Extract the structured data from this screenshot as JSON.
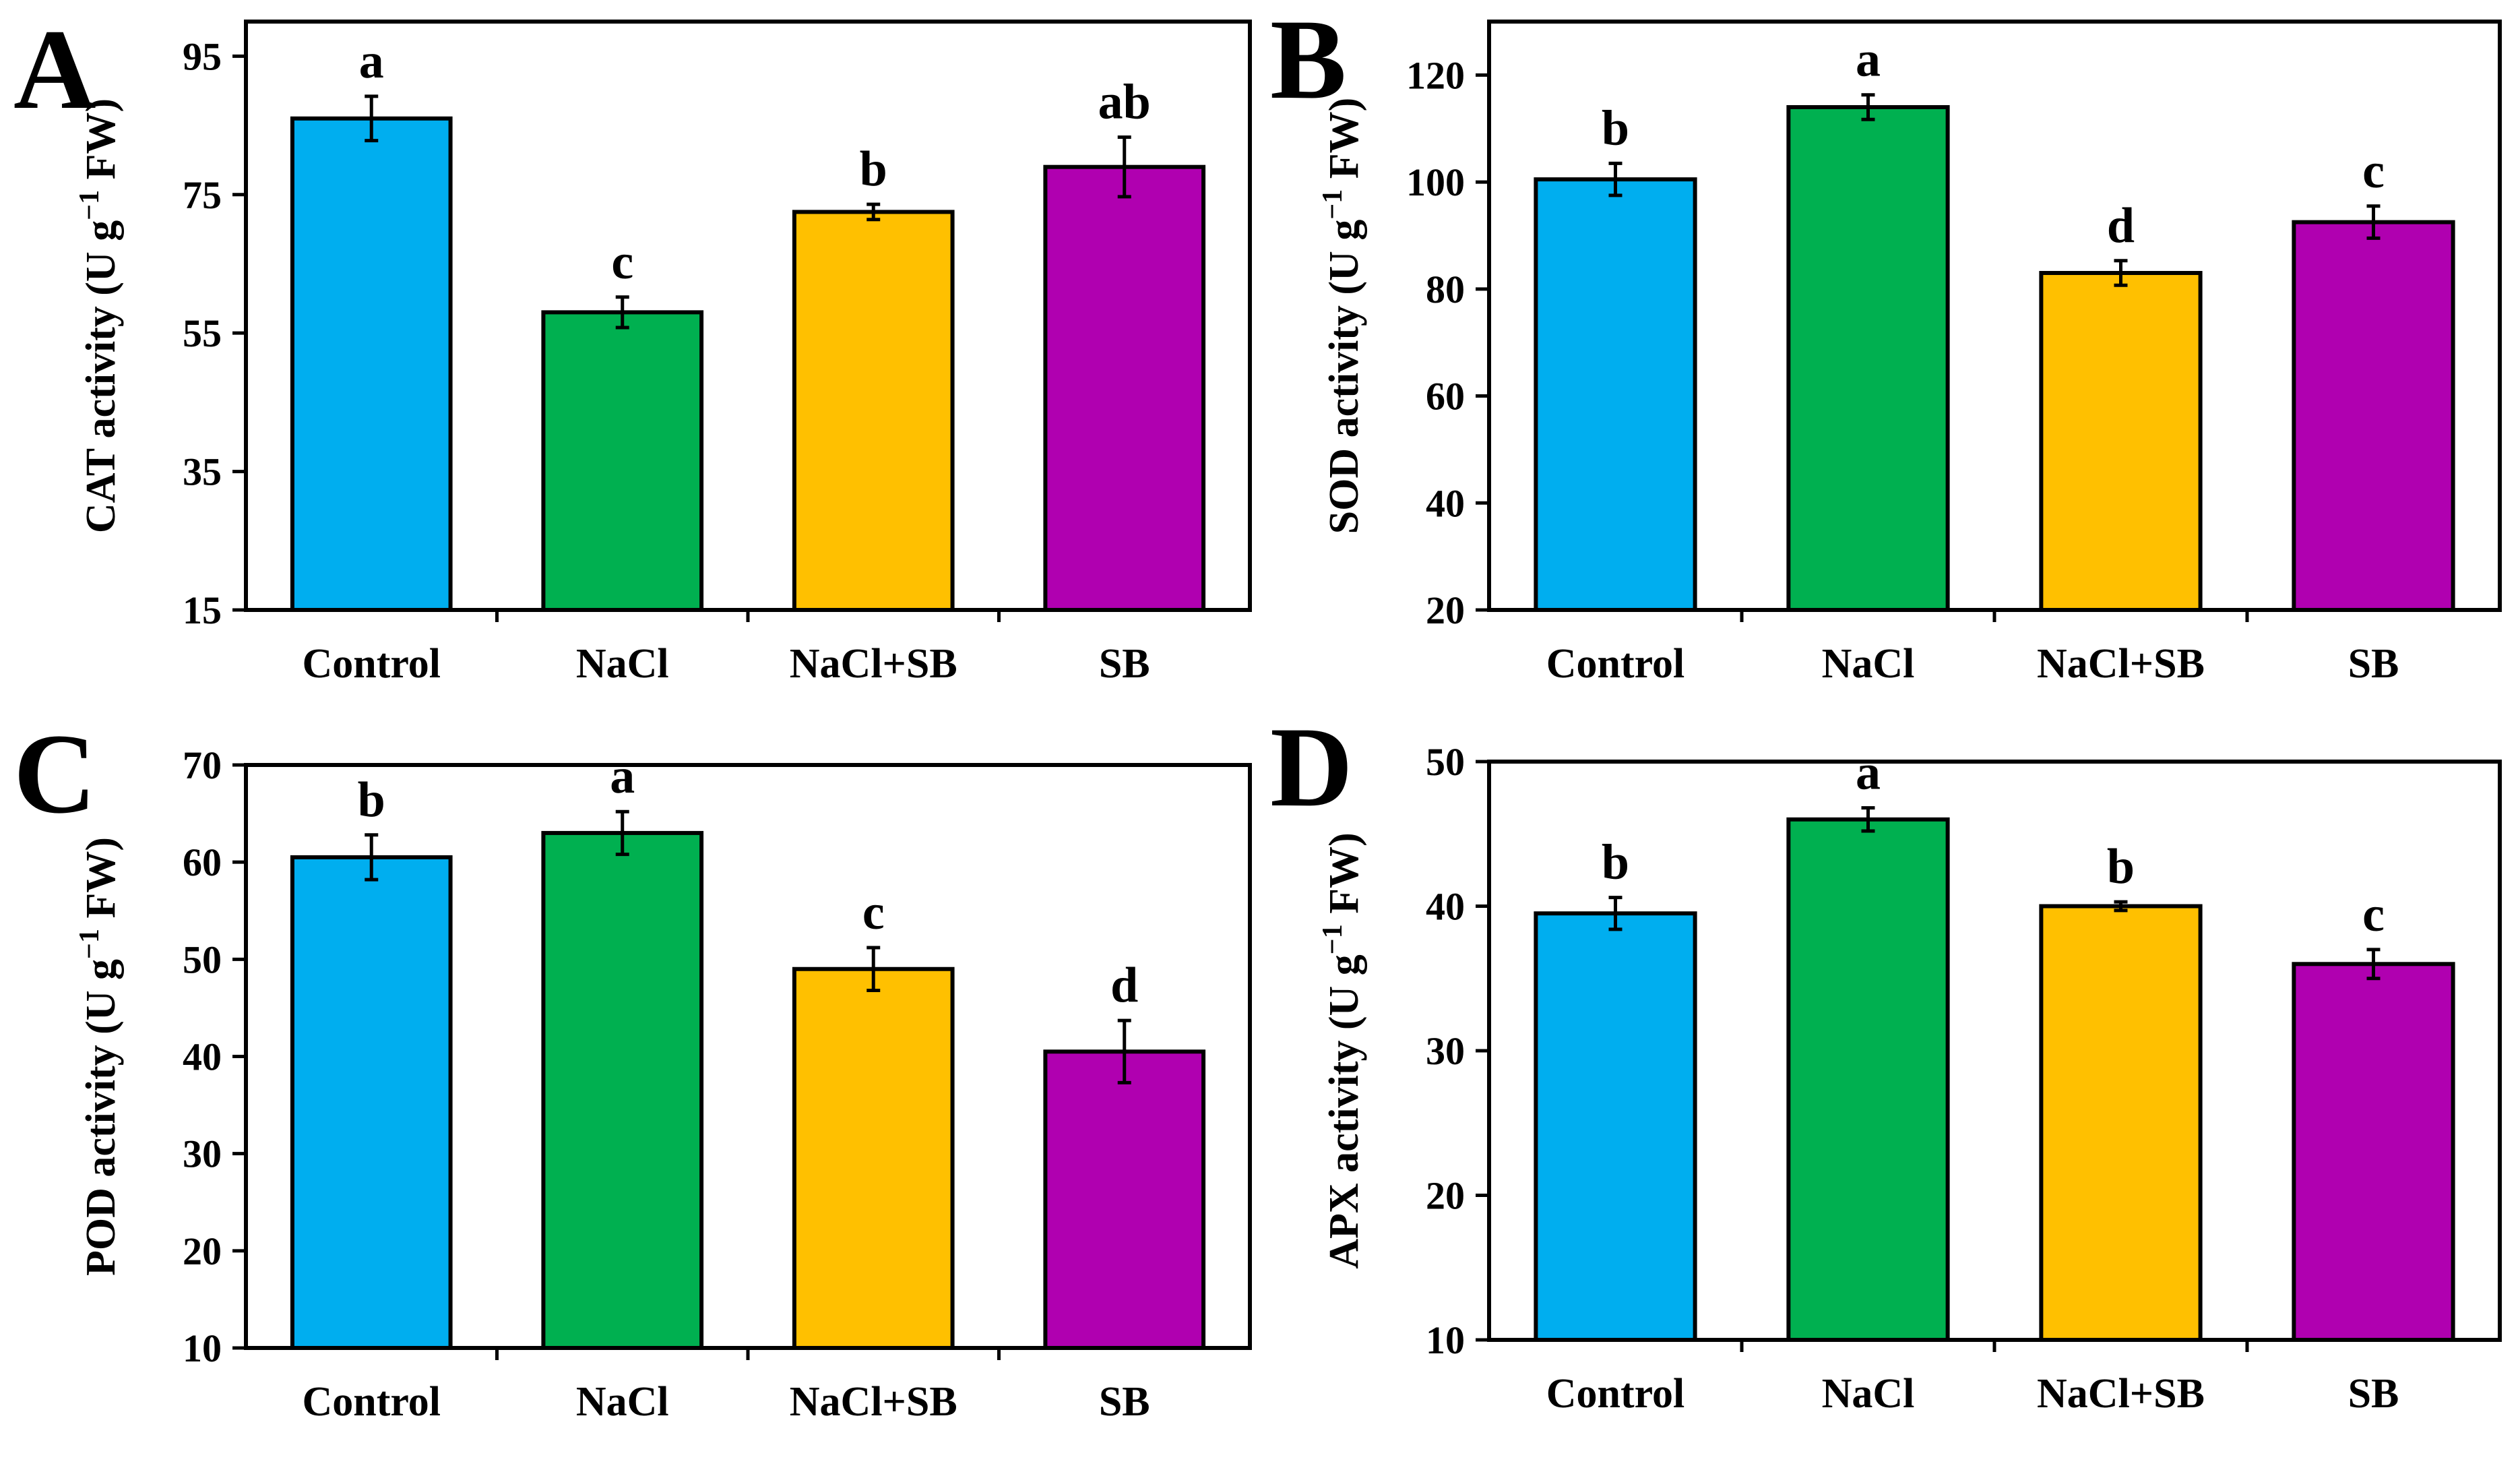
{
  "figure": {
    "colors": {
      "Control": "#00aeef",
      "NaCl": "#00b050",
      "NaCl+SB": "#ffc000",
      "SB": "#b000b0",
      "axis": "#000000"
    }
  },
  "chart_data": [
    {
      "panel": "A",
      "type": "bar",
      "categories": [
        "Control",
        "NaCl",
        "NaCl+SB",
        "SB"
      ],
      "values": [
        86,
        58,
        72.5,
        79
      ],
      "errors": [
        3.2,
        2.2,
        1.1,
        4.3
      ],
      "letters": [
        "a",
        "c",
        "b",
        "ab"
      ],
      "ylabel": "CAT activity (U g⁻¹ FW)",
      "ylabel_main": "CAT activity (U g",
      "ylabel_sup": "−1",
      "ylabel_end": " FW)",
      "ylim": [
        15,
        100
      ],
      "yticks": [
        15,
        35,
        55,
        75,
        95
      ]
    },
    {
      "panel": "B",
      "type": "bar",
      "categories": [
        "Control",
        "NaCl",
        "NaCl+SB",
        "SB"
      ],
      "values": [
        100.5,
        114,
        83,
        92.5
      ],
      "errors": [
        3,
        2.3,
        2.3,
        3
      ],
      "letters": [
        "b",
        "a",
        "d",
        "c"
      ],
      "ylabel": "SOD activity (U g⁻¹ FW)",
      "ylabel_main": "SOD activity (U g",
      "ylabel_sup": "−1",
      "ylabel_end": " FW)",
      "ylim": [
        20,
        130
      ],
      "yticks": [
        20,
        40,
        60,
        80,
        100,
        120
      ]
    },
    {
      "panel": "C",
      "type": "bar",
      "categories": [
        "Control",
        "NaCl",
        "NaCl+SB",
        "SB"
      ],
      "values": [
        60.5,
        63,
        49,
        40.5
      ],
      "errors": [
        2.3,
        2.2,
        2.2,
        3.2
      ],
      "letters": [
        "b",
        "a",
        "c",
        "d"
      ],
      "ylabel": "POD activity (U g⁻¹ FW)",
      "ylabel_main": "POD activity (U g",
      "ylabel_sup": "−1",
      "ylabel_end": " FW)",
      "ylim": [
        10,
        70
      ],
      "yticks": [
        10,
        20,
        30,
        40,
        50,
        60,
        70
      ]
    },
    {
      "panel": "D",
      "type": "bar",
      "categories": [
        "Control",
        "NaCl",
        "NaCl+SB",
        "SB"
      ],
      "values": [
        39.5,
        46,
        40,
        36
      ],
      "errors": [
        1.1,
        0.8,
        0.3,
        1
      ],
      "letters": [
        "b",
        "a",
        "b",
        "c"
      ],
      "ylabel": "APX activity (U g⁻¹ FW)",
      "ylabel_main": "APX activity (U g",
      "ylabel_sup": "−1",
      "ylabel_end": " FW)",
      "ylim": [
        10,
        50
      ],
      "yticks": [
        10,
        20,
        30,
        40,
        50
      ]
    }
  ]
}
